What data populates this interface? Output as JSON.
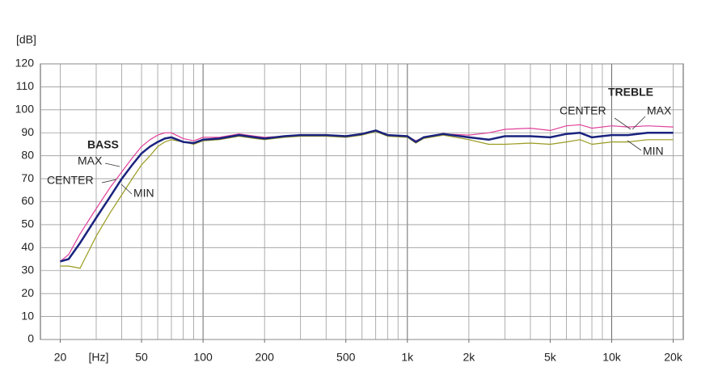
{
  "chart_data": {
    "type": "line",
    "y_unit": "[dB]",
    "x_unit": "[Hz]",
    "log_x": true,
    "grid": true,
    "xlim": [
      16,
      22400
    ],
    "ylim": [
      0,
      120
    ],
    "xticks": [
      20,
      50,
      100,
      200,
      500,
      {
        "value": 1000,
        "label": "1k"
      },
      {
        "value": 2000,
        "label": "2k"
      },
      {
        "value": 5000,
        "label": "5k"
      },
      {
        "value": 10000,
        "label": "10k"
      },
      {
        "value": 20000,
        "label": "20k"
      }
    ],
    "xgrid": [
      20,
      30,
      40,
      50,
      60,
      70,
      80,
      90,
      100,
      200,
      300,
      400,
      500,
      600,
      700,
      800,
      900,
      1000,
      2000,
      3000,
      4000,
      5000,
      6000,
      7000,
      8000,
      9000,
      10000,
      20000
    ],
    "yticks": [
      0,
      10,
      20,
      30,
      40,
      50,
      60,
      70,
      80,
      90,
      100,
      110,
      120
    ],
    "annotations": [
      "BASS",
      "TREBLE",
      "CENTER",
      "MAX",
      "MIN"
    ],
    "x": [
      20,
      22,
      25,
      30,
      35,
      40,
      45,
      50,
      55,
      60,
      65,
      70,
      80,
      90,
      100,
      120,
      150,
      180,
      200,
      250,
      300,
      400,
      500,
      600,
      700,
      800,
      1000,
      1100,
      1200,
      1500,
      2000,
      2500,
      3000,
      4000,
      5000,
      6000,
      7000,
      8000,
      10000,
      12000,
      15000,
      20000
    ],
    "series": [
      {
        "name": "MAX",
        "color": "#e0409a",
        "values": [
          34,
          37,
          46,
          57,
          66,
          73,
          79,
          84,
          87,
          89,
          90,
          90,
          87.5,
          86.5,
          88,
          88,
          89.5,
          88.5,
          88,
          88.5,
          89,
          89,
          88.5,
          89.5,
          91,
          89,
          88.5,
          86.5,
          88,
          89.5,
          89,
          90,
          91.5,
          92,
          91,
          93,
          93.5,
          92,
          93,
          92.5,
          93,
          92.5
        ]
      },
      {
        "name": "CENTER",
        "color": "#1a237e",
        "values": [
          34,
          35,
          42,
          53,
          62,
          70,
          76,
          81,
          84,
          86,
          87.5,
          88,
          86,
          85.5,
          87,
          87.5,
          89,
          88,
          87.5,
          88.5,
          89,
          89,
          88.5,
          89.5,
          91,
          89,
          88.5,
          86,
          88,
          89.5,
          88,
          87,
          88.5,
          88.5,
          88,
          89.5,
          90,
          88,
          89,
          89,
          90,
          90
        ]
      },
      {
        "name": "MIN",
        "color": "#9a9a20",
        "values": [
          32,
          32,
          31,
          45,
          55,
          63,
          70,
          76,
          80,
          84,
          86,
          87,
          86,
          85,
          86.5,
          87,
          88.5,
          87.5,
          87,
          88,
          88.5,
          88.5,
          88,
          89,
          90.5,
          88.5,
          88,
          85.5,
          87.5,
          89,
          87,
          85,
          85,
          85.5,
          85,
          86,
          87,
          85,
          86,
          86,
          87,
          87
        ]
      }
    ]
  }
}
